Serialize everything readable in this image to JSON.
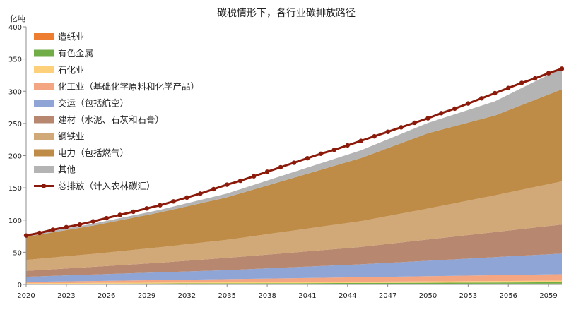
{
  "chart_data": {
    "type": "area",
    "title": "碳税情形下，各行业碳排放路径",
    "y_unit": "亿吨",
    "xlabel": "",
    "ylabel": "",
    "xlim": [
      2020,
      2060
    ],
    "ylim": [
      0,
      400
    ],
    "y_ticks": [
      0,
      50,
      100,
      150,
      200,
      250,
      300,
      350,
      400
    ],
    "x_ticks": [
      2020,
      2023,
      2026,
      2029,
      2032,
      2035,
      2038,
      2041,
      2044,
      2047,
      2050,
      2053,
      2056,
      2059
    ],
    "grid": false,
    "legend": "top-left",
    "x": [
      2020,
      2025,
      2030,
      2035,
      2040,
      2045,
      2050,
      2055,
      2060
    ],
    "series": [
      {
        "name": "造纸业",
        "color": "#ED7D31",
        "values": [
          0.5,
          0.6,
          0.7,
          0.8,
          0.9,
          1.0,
          1.1,
          1.2,
          1.3
        ]
      },
      {
        "name": "有色金属",
        "color": "#70AD47",
        "values": [
          0.5,
          0.6,
          0.8,
          0.9,
          1.1,
          1.3,
          1.5,
          1.8,
          2.2
        ]
      },
      {
        "name": "石化业",
        "color": "#FFD07A",
        "values": [
          1.0,
          1.2,
          1.4,
          1.6,
          1.8,
          2.0,
          2.2,
          2.4,
          2.5
        ]
      },
      {
        "name": "化工业（基础化学原料和化学产品）",
        "color": "#F4A582",
        "values": [
          2,
          3,
          4,
          5,
          6,
          7,
          8,
          9,
          10
        ]
      },
      {
        "name": "交运（包括航空）",
        "color": "#8EA5D6",
        "values": [
          8,
          10,
          12,
          14,
          17,
          20,
          24,
          28,
          32
        ]
      },
      {
        "name": "建材（水泥、石灰和石膏）",
        "color": "#B88770",
        "values": [
          9,
          12,
          15,
          19,
          23,
          27,
          33,
          39,
          45
        ]
      },
      {
        "name": "钢铁业",
        "color": "#D1A877",
        "values": [
          17,
          20,
          24,
          28,
          34,
          40,
          48,
          57,
          67
        ]
      },
      {
        "name": "电力（包括燃气）",
        "color": "#BF8C48",
        "values": [
          36,
          44,
          54,
          66,
          82,
          98,
          117,
          124,
          143
        ]
      },
      {
        "name": "其他",
        "color": "#B4B4B4",
        "values": [
          2,
          3,
          4,
          6,
          9,
          12,
          16,
          22,
          33
        ]
      }
    ],
    "total": {
      "name": "总排放（计入农林碳汇）",
      "color": "#8B1A0A",
      "x": [
        2020,
        2021,
        2022,
        2023,
        2024,
        2025,
        2026,
        2027,
        2028,
        2029,
        2030,
        2031,
        2032,
        2033,
        2034,
        2035,
        2036,
        2037,
        2038,
        2039,
        2040,
        2041,
        2042,
        2043,
        2044,
        2045,
        2046,
        2047,
        2048,
        2049,
        2050,
        2051,
        2052,
        2053,
        2054,
        2055,
        2056,
        2057,
        2058,
        2059,
        2060
      ],
      "values": [
        76,
        80,
        85,
        89,
        93,
        98,
        103,
        108,
        113,
        118,
        123,
        129,
        135,
        141,
        148,
        155,
        161,
        168,
        175,
        182,
        189,
        196,
        203,
        209,
        216,
        223,
        230,
        237,
        244,
        251,
        258,
        266,
        273,
        281,
        289,
        297,
        305,
        313,
        320,
        328,
        335
      ]
    }
  }
}
